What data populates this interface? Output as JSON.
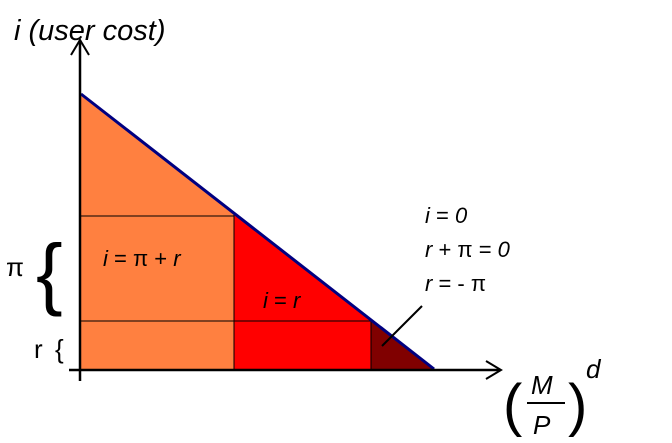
{
  "y_axis_label": {
    "var": "i",
    "rest": " (user cost)"
  },
  "x_axis_label": {
    "numerator": "M",
    "denominator": "P",
    "superscript": "d"
  },
  "brace_labels": {
    "pi": "π",
    "r": "r"
  },
  "regions": [
    {
      "label_i": "i",
      "label_rest": " = π + ",
      "label_r": "r",
      "color": "#FF8040"
    },
    {
      "label_i": "i",
      "label_rest": " = ",
      "label_r": "r",
      "color": "#FF0000"
    },
    {
      "color": "#800000"
    }
  ],
  "annotation": {
    "line1": {
      "a": "i",
      "b": " = ",
      "c": "0"
    },
    "line2": {
      "a": "r",
      "b": " + π = ",
      "c": "0"
    },
    "line3": {
      "a": "r",
      "b": " = - π"
    }
  },
  "demand_line_color": "#000080"
}
